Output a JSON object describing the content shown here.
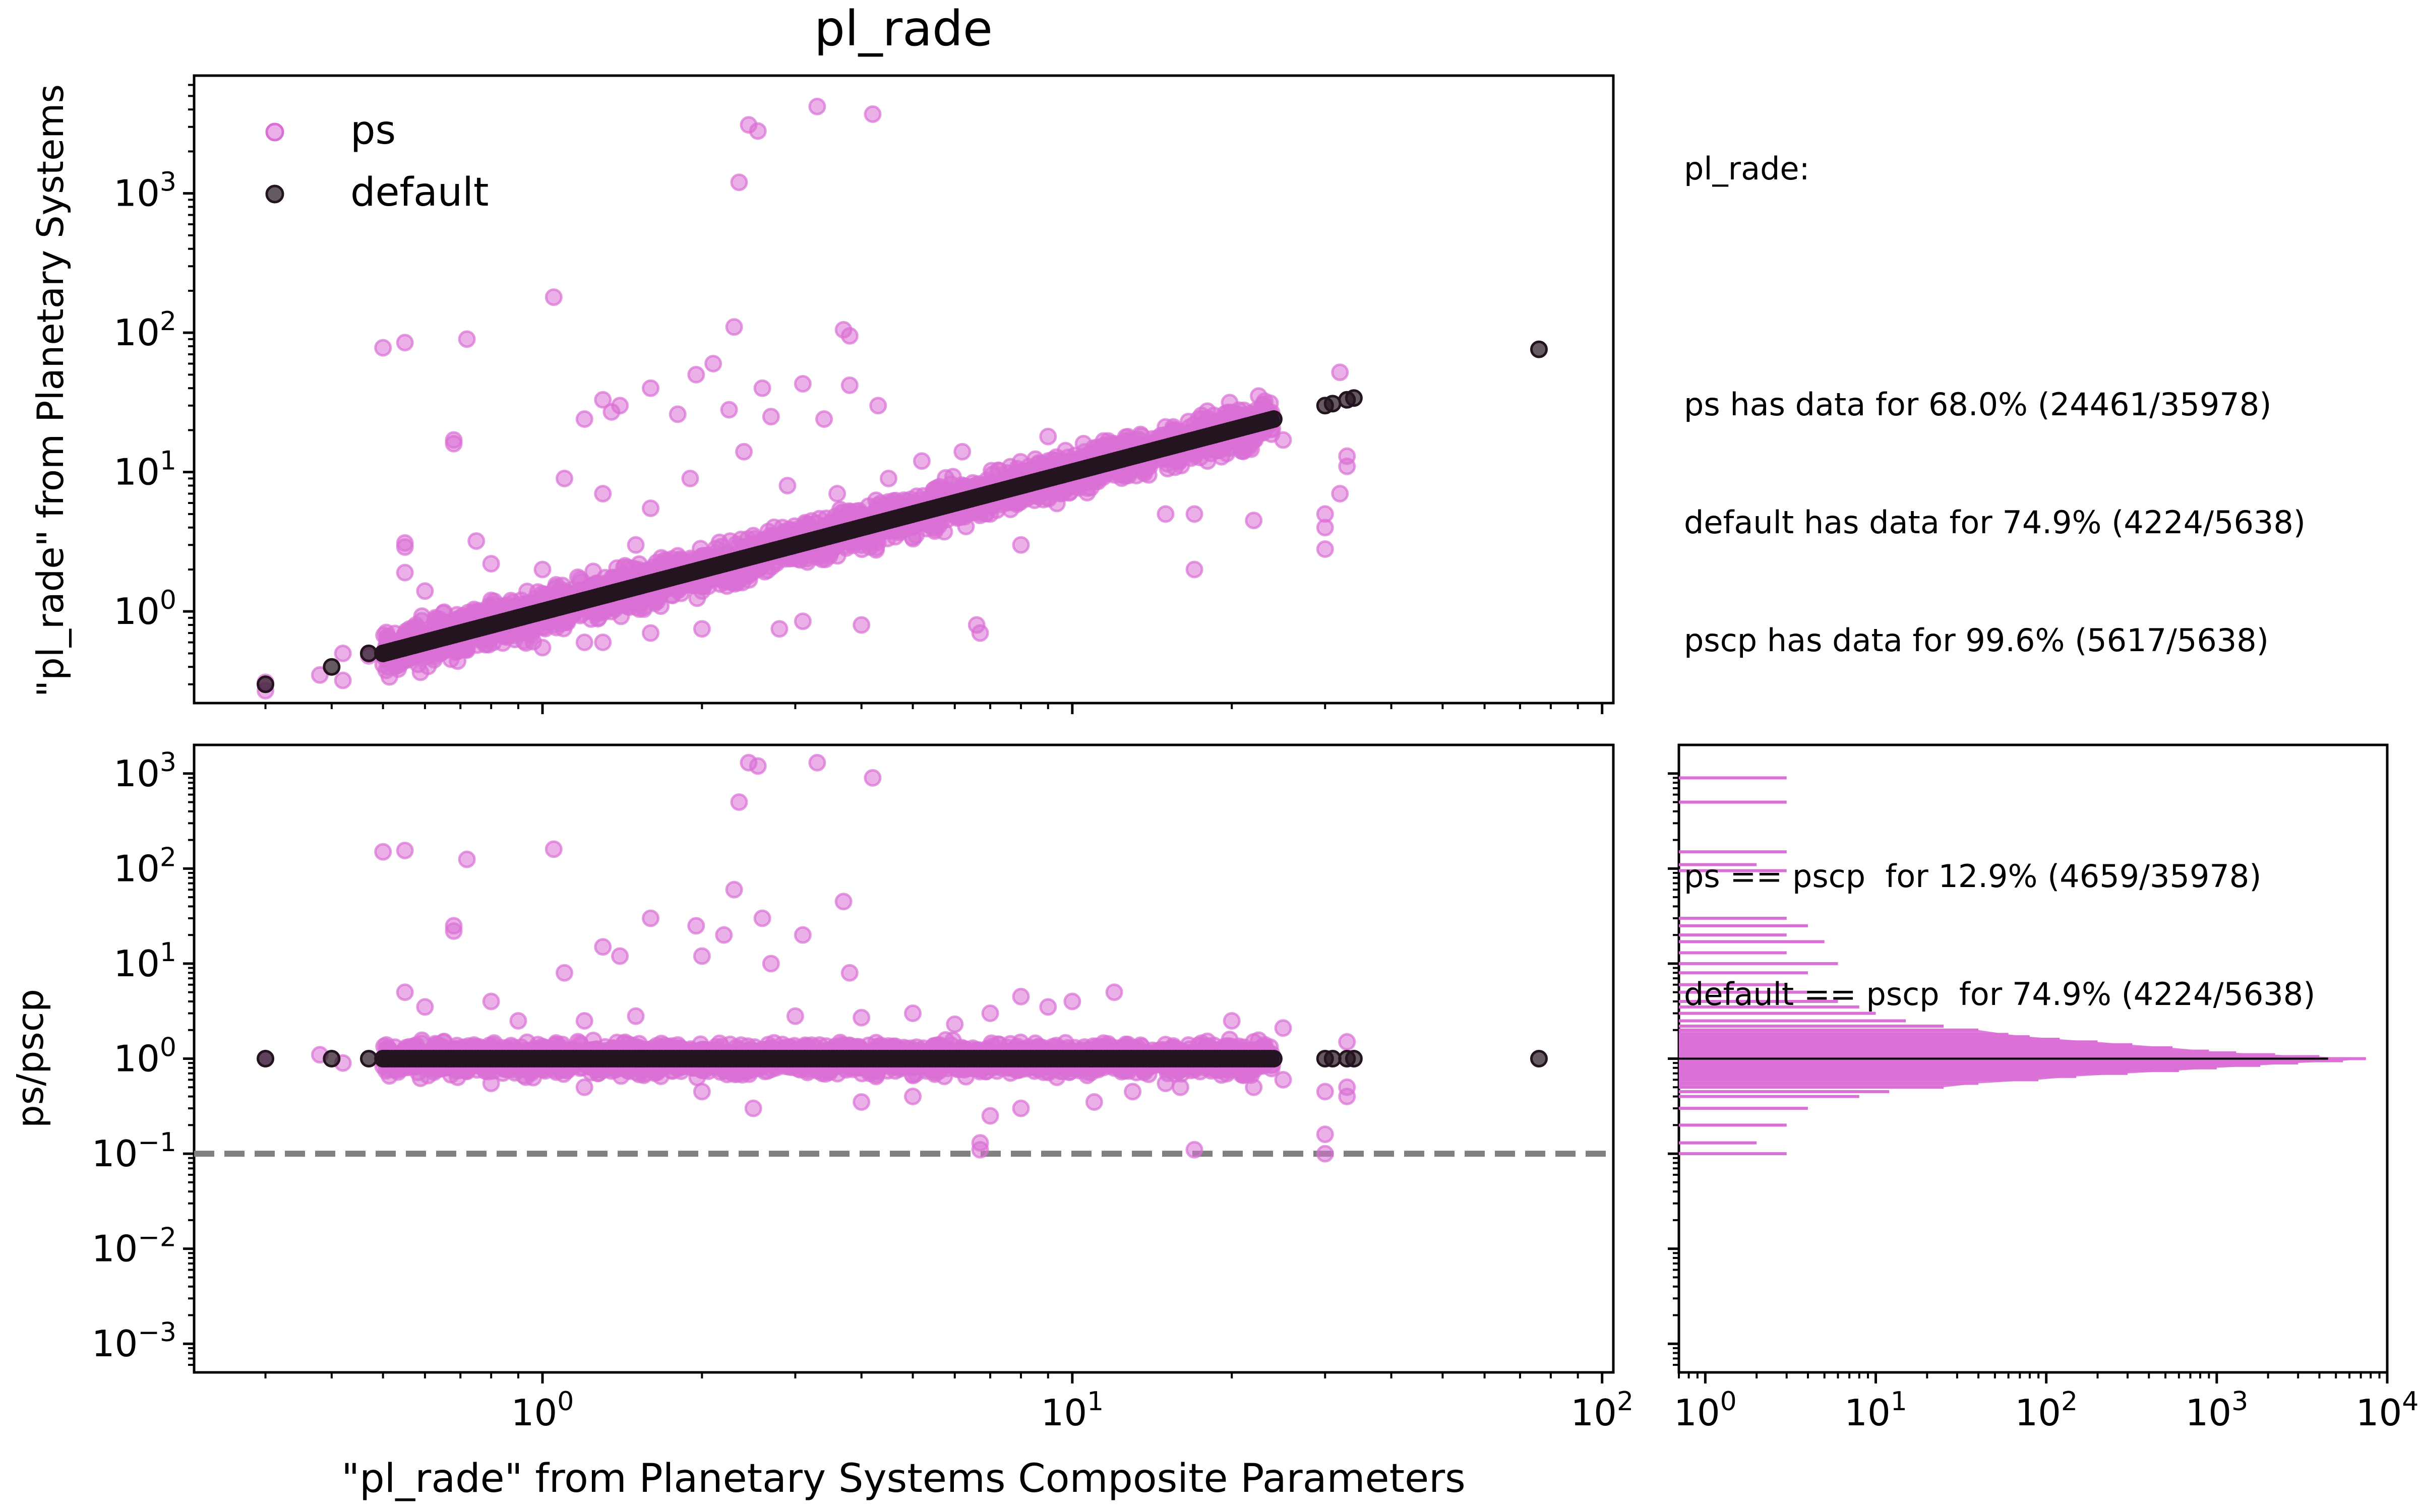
{
  "chart_data": [
    {
      "id": "scatter-top",
      "type": "scatter",
      "title": "pl_rade",
      "xlabel": "\"pl_rade\" from Planetary Systems Composite Parameters",
      "ylabel": "\"pl_rade\" from Planetary Systems",
      "xscale": "log",
      "yscale": "log",
      "xlim": [
        0.22,
        105
      ],
      "ylim": [
        0.22,
        7000
      ],
      "x_ticks": [
        {
          "v": 1,
          "b": "10",
          "e": "0"
        },
        {
          "v": 10,
          "b": "10",
          "e": "1"
        },
        {
          "v": 100,
          "b": "10",
          "e": "2"
        }
      ],
      "y_ticks": [
        {
          "v": 1,
          "b": "10",
          "e": "0"
        },
        {
          "v": 10,
          "b": "10",
          "e": "1"
        },
        {
          "v": 100,
          "b": "10",
          "e": "2"
        },
        {
          "v": 1000,
          "b": "10",
          "e": "3"
        }
      ],
      "legend": {
        "placement": "top-left",
        "entries": [
          "ps",
          "default"
        ]
      },
      "colors": {
        "ps": "#da70d6",
        "default": "#231420"
      },
      "series": [
        {
          "name": "ps",
          "points": [
            [
              2.45,
              3100
            ],
            [
              3.3,
              4200
            ],
            [
              4.2,
              3700
            ],
            [
              2.55,
              2800
            ],
            [
              2.35,
              1200
            ],
            [
              1.05,
              180
            ],
            [
              0.5,
              78
            ],
            [
              0.55,
              85
            ],
            [
              0.72,
              90
            ],
            [
              2.3,
              110
            ],
            [
              3.7,
              105
            ],
            [
              1.6,
              40
            ],
            [
              1.95,
              50
            ],
            [
              2.1,
              60
            ],
            [
              2.6,
              40
            ],
            [
              3.1,
              43
            ],
            [
              3.8,
              95
            ],
            [
              3.8,
              42
            ],
            [
              1.3,
              33
            ],
            [
              1.4,
              30
            ],
            [
              1.8,
              26
            ],
            [
              2.25,
              28
            ],
            [
              2.7,
              25
            ],
            [
              3.4,
              24
            ],
            [
              4.3,
              30
            ],
            [
              1.2,
              24
            ],
            [
              1.35,
              27
            ],
            [
              0.68,
              16
            ],
            [
              0.68,
              17
            ],
            [
              1.1,
              9
            ],
            [
              1.3,
              7
            ],
            [
              1.6,
              5.5
            ],
            [
              1.9,
              9
            ],
            [
              2.4,
              14
            ],
            [
              2.9,
              8
            ],
            [
              3.6,
              7
            ],
            [
              4.5,
              9
            ],
            [
              5.2,
              12
            ],
            [
              6.2,
              14
            ],
            [
              9,
              18
            ],
            [
              10.5,
              16
            ],
            [
              12,
              16
            ],
            [
              15,
              15
            ],
            [
              17,
              22
            ],
            [
              20,
              20
            ],
            [
              22,
              17
            ],
            [
              25,
              17
            ],
            [
              32,
              52
            ],
            [
              33,
              11
            ],
            [
              33,
              13
            ],
            [
              32,
              7
            ],
            [
              30,
              5
            ],
            [
              30,
              4
            ],
            [
              30,
              2.8
            ],
            [
              17,
              2
            ],
            [
              17,
              5
            ],
            [
              22,
              4.5
            ],
            [
              15,
              5
            ],
            [
              8,
              3
            ],
            [
              6.6,
              0.8
            ],
            [
              6.7,
              0.7
            ],
            [
              4,
              0.8
            ],
            [
              3.1,
              0.85
            ],
            [
              2.8,
              0.75
            ],
            [
              2.0,
              0.75
            ],
            [
              1.6,
              0.7
            ],
            [
              1.3,
              0.6
            ],
            [
              1.0,
              0.55
            ],
            [
              1.2,
              0.6
            ],
            [
              0.9,
              0.7
            ],
            [
              0.55,
              1.9
            ],
            [
              0.6,
              1.4
            ],
            [
              0.55,
              2.9
            ],
            [
              0.55,
              3.1
            ],
            [
              0.75,
              3.2
            ],
            [
              0.8,
              2.2
            ],
            [
              0.3,
              0.27
            ],
            [
              0.3,
              0.31
            ],
            [
              0.38,
              0.35
            ],
            [
              0.42,
              0.32
            ],
            [
              0.42,
              0.5
            ],
            [
              0.47,
              0.48
            ],
            [
              1.5,
              1.5
            ],
            [
              2.5,
              3.5
            ],
            [
              5,
              6
            ],
            [
              4,
              3
            ],
            [
              3,
              2.5
            ],
            [
              6,
              7
            ],
            [
              7,
              5
            ],
            [
              8,
              8
            ],
            [
              11,
              10
            ],
            [
              12,
              14
            ],
            [
              14,
              11
            ],
            [
              9,
              12
            ],
            [
              1,
              2
            ],
            [
              1.5,
              3
            ],
            [
              0.8,
              1.2
            ],
            [
              0.7,
              0.9
            ],
            [
              2,
              1.4
            ],
            [
              2.5,
              2
            ],
            [
              3.5,
              2.8
            ],
            [
              18,
              12
            ]
          ]
        },
        {
          "name": "default",
          "points": [
            [
              0.3,
              0.3
            ],
            [
              0.4,
              0.4
            ],
            [
              0.47,
              0.5
            ],
            [
              0.5,
              0.5
            ],
            [
              0.53,
              0.53
            ],
            [
              0.57,
              0.57
            ],
            [
              76,
              76
            ],
            [
              30,
              30
            ],
            [
              31,
              31
            ],
            [
              33,
              33
            ],
            [
              34,
              34
            ]
          ],
          "diagonal_range": [
            0.5,
            24
          ]
        }
      ]
    },
    {
      "id": "ratio",
      "type": "scatter",
      "ylabel": "ps/pscp",
      "xscale": "log",
      "yscale": "log",
      "xlim": [
        0.22,
        105
      ],
      "ylim": [
        0.0005,
        2000
      ],
      "x_ticks": [
        {
          "v": 1,
          "b": "10",
          "e": "0"
        },
        {
          "v": 10,
          "b": "10",
          "e": "1"
        },
        {
          "v": 100,
          "b": "10",
          "e": "2"
        }
      ],
      "y_ticks": [
        {
          "v": 1000,
          "b": "10",
          "e": "3"
        },
        {
          "v": 100,
          "b": "10",
          "e": "2"
        },
        {
          "v": 10,
          "b": "10",
          "e": "1"
        },
        {
          "v": 1,
          "b": "10",
          "e": "0"
        },
        {
          "v": 0.1,
          "b": "10",
          "e": "−1"
        },
        {
          "v": 0.01,
          "b": "10",
          "e": "−2"
        },
        {
          "v": 0.001,
          "b": "10",
          "e": "−3"
        }
      ],
      "reference_line": {
        "y": 0.1,
        "style": "dashed",
        "color": "#808080"
      },
      "series": [
        {
          "name": "ps",
          "points": [
            [
              2.45,
              1300
            ],
            [
              2.55,
              1200
            ],
            [
              3.3,
              1300
            ],
            [
              4.2,
              900
            ],
            [
              2.35,
              500
            ],
            [
              1.05,
              160
            ],
            [
              0.5,
              150
            ],
            [
              0.55,
              155
            ],
            [
              0.72,
              125
            ],
            [
              2.3,
              60
            ],
            [
              3.7,
              45
            ],
            [
              1.6,
              30
            ],
            [
              1.95,
              25
            ],
            [
              2.2,
              20
            ],
            [
              2.6,
              30
            ],
            [
              3.1,
              20
            ],
            [
              1.3,
              15
            ],
            [
              0.68,
              25
            ],
            [
              0.68,
              22
            ],
            [
              1.1,
              8
            ],
            [
              1.4,
              12
            ],
            [
              2.0,
              12
            ],
            [
              2.7,
              10
            ],
            [
              3.8,
              8
            ],
            [
              0.55,
              5
            ],
            [
              0.6,
              3.5
            ],
            [
              0.8,
              4
            ],
            [
              0.3,
              1.0
            ],
            [
              0.38,
              1.1
            ],
            [
              0.42,
              0.9
            ],
            [
              6.7,
              0.11
            ],
            [
              6.7,
              0.13
            ],
            [
              17,
              0.11
            ],
            [
              30,
              0.1
            ],
            [
              30,
              0.16
            ],
            [
              33,
              0.5
            ],
            [
              33,
              0.4
            ],
            [
              30,
              0.45
            ],
            [
              22,
              0.5
            ],
            [
              25,
              0.6
            ],
            [
              15,
              0.55
            ],
            [
              10,
              4
            ],
            [
              12,
              5
            ],
            [
              9,
              3.5
            ],
            [
              8,
              4.5
            ],
            [
              7,
              3
            ],
            [
              20,
              2.5
            ],
            [
              22,
              1.5
            ],
            [
              33,
              1.5
            ],
            [
              25,
              2.1
            ],
            [
              5,
              3
            ],
            [
              6,
              2.3
            ],
            [
              1.2,
              2.5
            ],
            [
              1.5,
              2.8
            ],
            [
              0.9,
              2.5
            ],
            [
              3,
              2.8
            ],
            [
              4,
              2.7
            ],
            [
              5,
              0.4
            ],
            [
              4,
              0.35
            ],
            [
              2.5,
              0.3
            ],
            [
              2,
              0.45
            ],
            [
              1.2,
              0.5
            ],
            [
              0.8,
              0.55
            ],
            [
              11,
              0.35
            ],
            [
              13,
              0.45
            ],
            [
              16,
              0.5
            ],
            [
              8,
              0.3
            ],
            [
              7,
              0.25
            ]
          ]
        },
        {
          "name": "default",
          "points": [
            [
              0.3,
              1
            ],
            [
              0.4,
              1
            ],
            [
              0.47,
              1
            ],
            [
              30,
              1
            ],
            [
              31,
              1
            ],
            [
              33,
              1
            ],
            [
              34,
              1
            ],
            [
              76,
              1
            ]
          ],
          "line_range": [
            0.5,
            24
          ]
        }
      ]
    },
    {
      "id": "histogram",
      "type": "bar",
      "orientation": "horizontal",
      "xscale": "log",
      "yscale": "log",
      "xlim": [
        0.7,
        10000
      ],
      "x_ticks": [
        {
          "v": 1,
          "b": "10",
          "e": "0"
        },
        {
          "v": 10,
          "b": "10",
          "e": "1"
        },
        {
          "v": 100,
          "b": "10",
          "e": "2"
        },
        {
          "v": 1000,
          "b": "10",
          "e": "3"
        },
        {
          "v": 10000,
          "b": "10",
          "e": "4"
        }
      ],
      "color": "#da70d6",
      "peak_line": {
        "ratio": 1,
        "count": 4500,
        "color": "#000000"
      },
      "bins": [
        [
          0.1,
          3
        ],
        [
          0.13,
          2
        ],
        [
          0.2,
          3
        ],
        [
          0.3,
          4
        ],
        [
          0.4,
          8
        ],
        [
          0.45,
          12
        ],
        [
          0.5,
          25
        ],
        [
          0.55,
          40
        ],
        [
          0.6,
          90
        ],
        [
          0.65,
          150
        ],
        [
          0.7,
          300
        ],
        [
          0.75,
          600
        ],
        [
          0.8,
          1000
        ],
        [
          0.85,
          1800
        ],
        [
          0.9,
          3000
        ],
        [
          0.95,
          5500
        ],
        [
          1.0,
          7500
        ],
        [
          1.05,
          4000
        ],
        [
          1.1,
          2200
        ],
        [
          1.15,
          1300
        ],
        [
          1.2,
          900
        ],
        [
          1.3,
          550
        ],
        [
          1.4,
          320
        ],
        [
          1.5,
          200
        ],
        [
          1.6,
          120
        ],
        [
          1.7,
          80
        ],
        [
          1.8,
          60
        ],
        [
          2.0,
          40
        ],
        [
          2.2,
          25
        ],
        [
          2.5,
          15
        ],
        [
          3.0,
          10
        ],
        [
          3.5,
          8
        ],
        [
          4.0,
          6
        ],
        [
          5.0,
          4
        ],
        [
          6.0,
          3
        ],
        [
          8.0,
          4
        ],
        [
          10,
          6
        ],
        [
          13,
          3
        ],
        [
          17,
          5
        ],
        [
          20,
          3
        ],
        [
          25,
          4
        ],
        [
          30,
          3
        ],
        [
          95,
          3
        ],
        [
          110,
          2
        ],
        [
          150,
          3
        ],
        [
          500,
          3
        ],
        [
          900,
          3
        ]
      ]
    }
  ],
  "info_panel": {
    "lines": [
      "pl_rade:",
      "",
      "ps has data for 68.0% (24461/35978)",
      "default has data for 74.9% (4224/5638)",
      "pscp has data for 99.6% (5617/5638)",
      "",
      "ps == pscp  for 12.9% (4659/35978)",
      "default == pscp  for 74.9% (4224/5638)"
    ]
  }
}
